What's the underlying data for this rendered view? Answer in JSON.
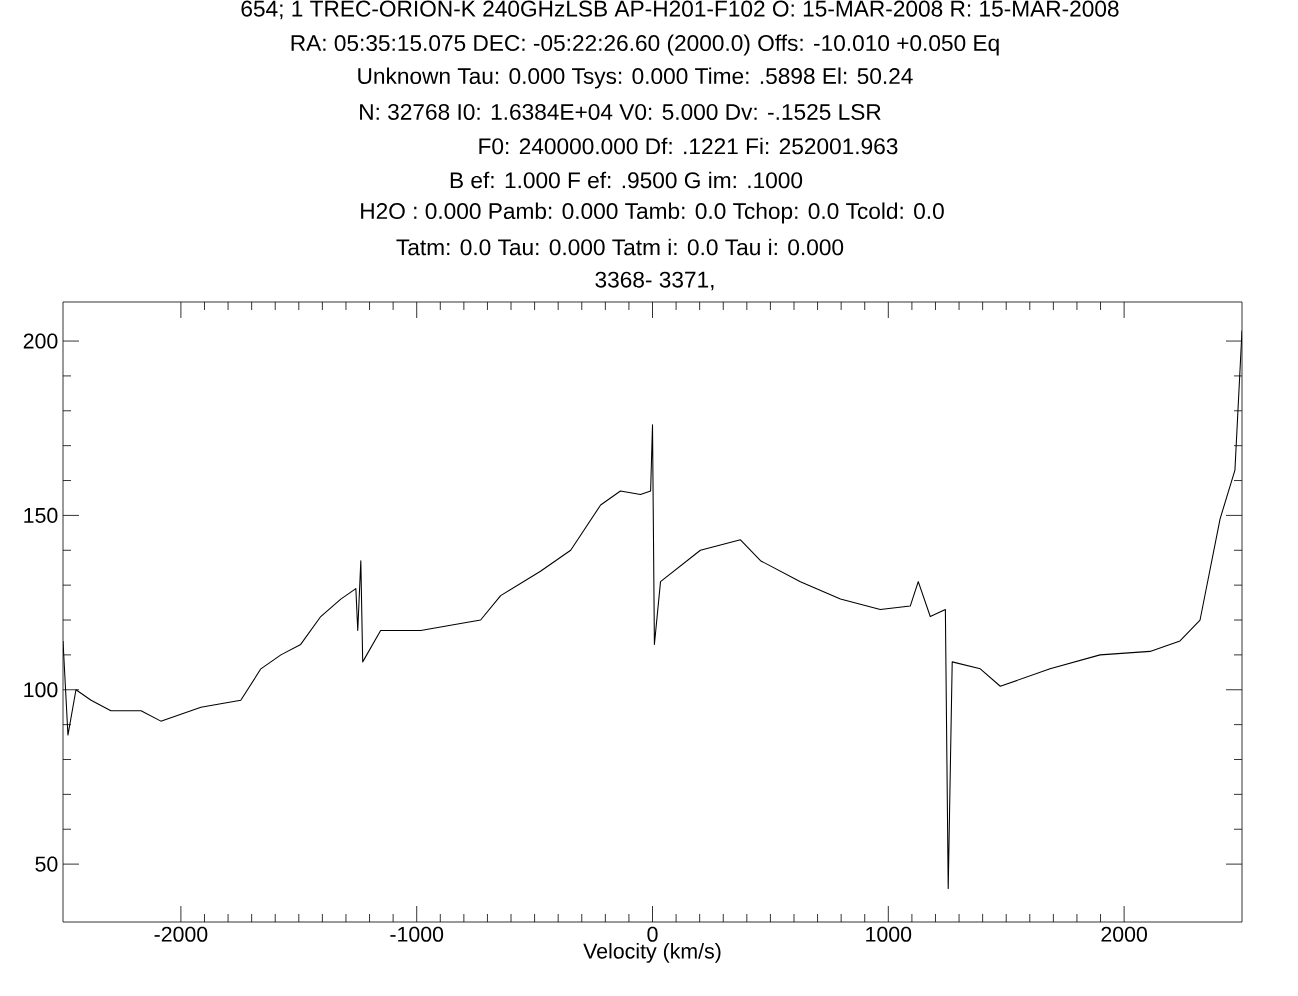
{
  "chart_data": {
    "type": "line",
    "xlabel": "Velocity (km/s)",
    "annotations": [
      "654; 1 TREC-ORION-K 240GHzLSB AP-H201-F102 O: 15-MAR-2008 R: 15-MAR-2008",
      "RA: 05:35:15.075 DEC: -05:22:26.60 (2000.0) Offs: -10.010 +0.050 Eq",
      "Unknown Tau: 0.000 Tsys: 0.000 Time: .5898 El: 50.24",
      "N: 32768 I0: 1.6384E+04 V0: 5.000 Dv: -.1525 LSR",
      "F0: 240000.000 Df: .1221 Fi: 252001.963",
      "B ef: 1.000 F ef: .9500 G im: .1000",
      "H2O : 0.000 Pamb: 0.000 Tamb: 0.0 Tchop: 0.0 Tcold: 0.0",
      "Tatm: 0.0 Tau: 0.000 Tatm i: 0.0 Tau i: 0.000",
      "3368- 3371,"
    ],
    "x": [
      -2500,
      -2479,
      -2445,
      -2381,
      -2297,
      -2169,
      -2085,
      -2000,
      -1915,
      -1831,
      -1746,
      -1661,
      -1576,
      -1492,
      -1407,
      -1322,
      -1258,
      -1250,
      -1237,
      -1229,
      -1153,
      -983,
      -814,
      -729,
      -644,
      -475,
      -347,
      -220,
      -136,
      -51,
      -8,
      0,
      8,
      34,
      203,
      373,
      458,
      627,
      797,
      966,
      1093,
      1127,
      1178,
      1242,
      1254,
      1271,
      1390,
      1475,
      1686,
      1898,
      2110,
      2237,
      2322,
      2407,
      2470,
      2500
    ],
    "series": [
      {
        "color": "#000000",
        "values": [
          114,
          87,
          100,
          97,
          94,
          94,
          91,
          93,
          95,
          96,
          97,
          106,
          110,
          113,
          121,
          126,
          129,
          117,
          137,
          108,
          117,
          117,
          119,
          120,
          127,
          134,
          140,
          153,
          157,
          156,
          157,
          176,
          113,
          131,
          140,
          143,
          137,
          131,
          126,
          123,
          124,
          131,
          121,
          123,
          43,
          108,
          106,
          101,
          106,
          110,
          111,
          114,
          120,
          149,
          163,
          203
        ]
      }
    ],
    "xlim": [
      -2500,
      2500
    ],
    "ylim": [
      33.4,
      211.2
    ],
    "xticks": [
      -2000,
      -1000,
      0,
      1000,
      2000
    ],
    "yticks": [
      50,
      100,
      150,
      200
    ]
  }
}
